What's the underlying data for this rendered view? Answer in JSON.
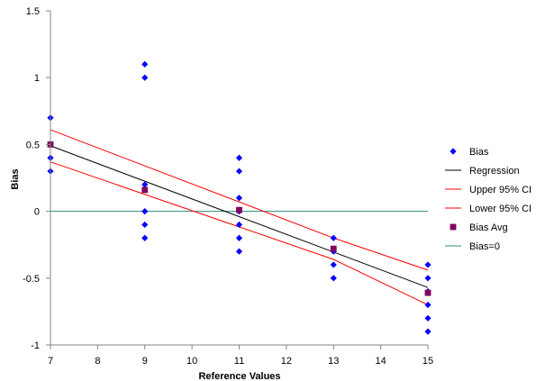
{
  "chart_data": {
    "type": "scatter",
    "title": "",
    "xlabel": "Reference Values",
    "ylabel": "Bias",
    "xlim": [
      7,
      15
    ],
    "ylim": [
      -1,
      1.5
    ],
    "x_ticks": [
      7,
      8,
      9,
      10,
      11,
      12,
      13,
      14,
      15
    ],
    "y_ticks": [
      -1,
      -0.5,
      0,
      0.5,
      1,
      1.5
    ],
    "x_tick_labels": [
      "7",
      "8",
      "9",
      "10",
      "11",
      "12",
      "13",
      "14",
      "15"
    ],
    "y_tick_labels": [
      "-1",
      "-0.5",
      "0",
      "0.5",
      "1",
      "1.5"
    ],
    "grid": false,
    "legend_position": "right",
    "series": [
      {
        "name": "Bias",
        "kind": "scatter",
        "marker": "diamond",
        "color": "#0000FF",
        "points": [
          [
            7,
            0.7
          ],
          [
            7,
            0.5
          ],
          [
            7,
            0.4
          ],
          [
            7,
            0.3
          ],
          [
            9,
            1.1
          ],
          [
            9,
            1.0
          ],
          [
            9,
            0.2
          ],
          [
            9,
            0.0
          ],
          [
            9,
            -0.1
          ],
          [
            9,
            -0.2
          ],
          [
            11,
            0.4
          ],
          [
            11,
            0.3
          ],
          [
            11,
            0.1
          ],
          [
            11,
            0.0
          ],
          [
            11,
            -0.1
          ],
          [
            11,
            -0.2
          ],
          [
            11,
            -0.3
          ],
          [
            13,
            -0.2
          ],
          [
            13,
            -0.3
          ],
          [
            13,
            -0.4
          ],
          [
            13,
            -0.5
          ],
          [
            15,
            -0.4
          ],
          [
            15,
            -0.5
          ],
          [
            15,
            -0.6
          ],
          [
            15,
            -0.7
          ],
          [
            15,
            -0.8
          ],
          [
            15,
            -0.9
          ]
        ]
      },
      {
        "name": "Regression",
        "kind": "line",
        "color": "#000000",
        "points": [
          [
            7,
            0.49
          ],
          [
            15,
            -0.57
          ]
        ]
      },
      {
        "name": "Upper 95% CI",
        "kind": "line",
        "color": "#FF0000",
        "points": [
          [
            7,
            0.61
          ],
          [
            13,
            -0.2
          ],
          [
            15,
            -0.44
          ]
        ]
      },
      {
        "name": "Lower 95% CI",
        "kind": "line",
        "color": "#FF0000",
        "points": [
          [
            7,
            0.37
          ],
          [
            13,
            -0.36
          ],
          [
            15,
            -0.7
          ]
        ]
      },
      {
        "name": "Bias Avg",
        "kind": "scatter",
        "marker": "square",
        "color": "#800060",
        "points": [
          [
            7,
            0.5
          ],
          [
            9,
            0.16
          ],
          [
            11,
            0.01
          ],
          [
            13,
            -0.28
          ],
          [
            15,
            -0.61
          ]
        ]
      },
      {
        "name": "Bias=0",
        "kind": "line",
        "color": "#2E8B7A",
        "points": [
          [
            7,
            0
          ],
          [
            15,
            0
          ]
        ]
      }
    ]
  }
}
